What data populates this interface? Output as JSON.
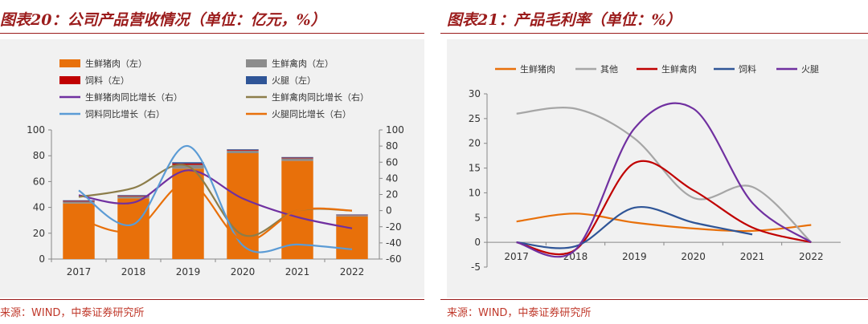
{
  "left": {
    "title": "图表20：公司产品营收情况（单位：亿元，%）",
    "source": "来源：WIND，中泰证券研究所",
    "chart_data": {
      "type": "bar",
      "categories": [
        "2017",
        "2018",
        "2019",
        "2020",
        "2021",
        "2022"
      ],
      "ylim": [
        0,
        100
      ],
      "yticks": [
        0,
        20,
        40,
        60,
        80,
        100
      ],
      "y2lim": [
        -60,
        100
      ],
      "y2ticks": [
        -60,
        -40,
        -20,
        0,
        20,
        40,
        60,
        80,
        100
      ],
      "bar_series": [
        {
          "name": "生鲜猪肉（左）",
          "color": "#e8700a",
          "values": [
            43,
            47,
            70,
            82,
            76,
            33
          ]
        },
        {
          "name": "生鲜禽肉（左）",
          "color": "#8c8c8c",
          "values": [
            1.5,
            1.5,
            3,
            2,
            2,
            1
          ]
        },
        {
          "name": "饲料（左）",
          "color": "#c00000",
          "values": [
            0.5,
            0.5,
            1,
            0.5,
            0.5,
            0.3
          ]
        },
        {
          "name": "火腿（左）",
          "color": "#2f5597",
          "values": [
            0.5,
            0.5,
            1,
            0.5,
            0.5,
            0.3
          ]
        }
      ],
      "line_series": [
        {
          "name": "生鲜猪肉同比增长（右）",
          "color": "#7030a0",
          "values": [
            19,
            10,
            50,
            15,
            -8,
            -22
          ]
        },
        {
          "name": "生鲜禽肉同比增长（右）",
          "color": "#8c7d4a",
          "values": [
            17,
            28,
            55,
            -30,
            0,
            0
          ]
        },
        {
          "name": "饲料同比增长（右）",
          "color": "#5b9bd5",
          "values": [
            25,
            -17,
            80,
            -43,
            -42,
            -48
          ]
        },
        {
          "name": "火腿同比增长（右）",
          "color": "#e8700a",
          "values": [
            -10,
            -25,
            35,
            -37,
            0,
            0
          ]
        }
      ],
      "legend_position": "top"
    }
  },
  "right": {
    "title": "图表21：产品毛利率（单位：%）",
    "source": "来源：WIND，中泰证券研究所",
    "chart_data": {
      "type": "line",
      "categories": [
        "2017",
        "2018",
        "2019",
        "2020",
        "2021",
        "2022"
      ],
      "ylim": [
        -5,
        30
      ],
      "yticks": [
        -5,
        0,
        5,
        10,
        15,
        20,
        25,
        30
      ],
      "series": [
        {
          "name": "生鲜猪肉",
          "color": "#e8700a",
          "values": [
            4.2,
            5.8,
            4.0,
            2.8,
            2.3,
            3.5
          ]
        },
        {
          "name": "其他",
          "color": "#a6a6a6",
          "values": [
            26,
            27,
            21,
            9,
            11.2,
            0
          ]
        },
        {
          "name": "生鲜禽肉",
          "color": "#c00000",
          "values": [
            0,
            -1.5,
            16,
            10.5,
            3,
            0
          ]
        },
        {
          "name": "饲料",
          "color": "#2f5597",
          "values": [
            0,
            -0.8,
            7,
            4,
            1.6,
            null
          ]
        },
        {
          "name": "火腿",
          "color": "#7030a0",
          "values": [
            0,
            -1.5,
            23,
            27,
            8,
            0
          ]
        }
      ],
      "legend_position": "top"
    }
  }
}
